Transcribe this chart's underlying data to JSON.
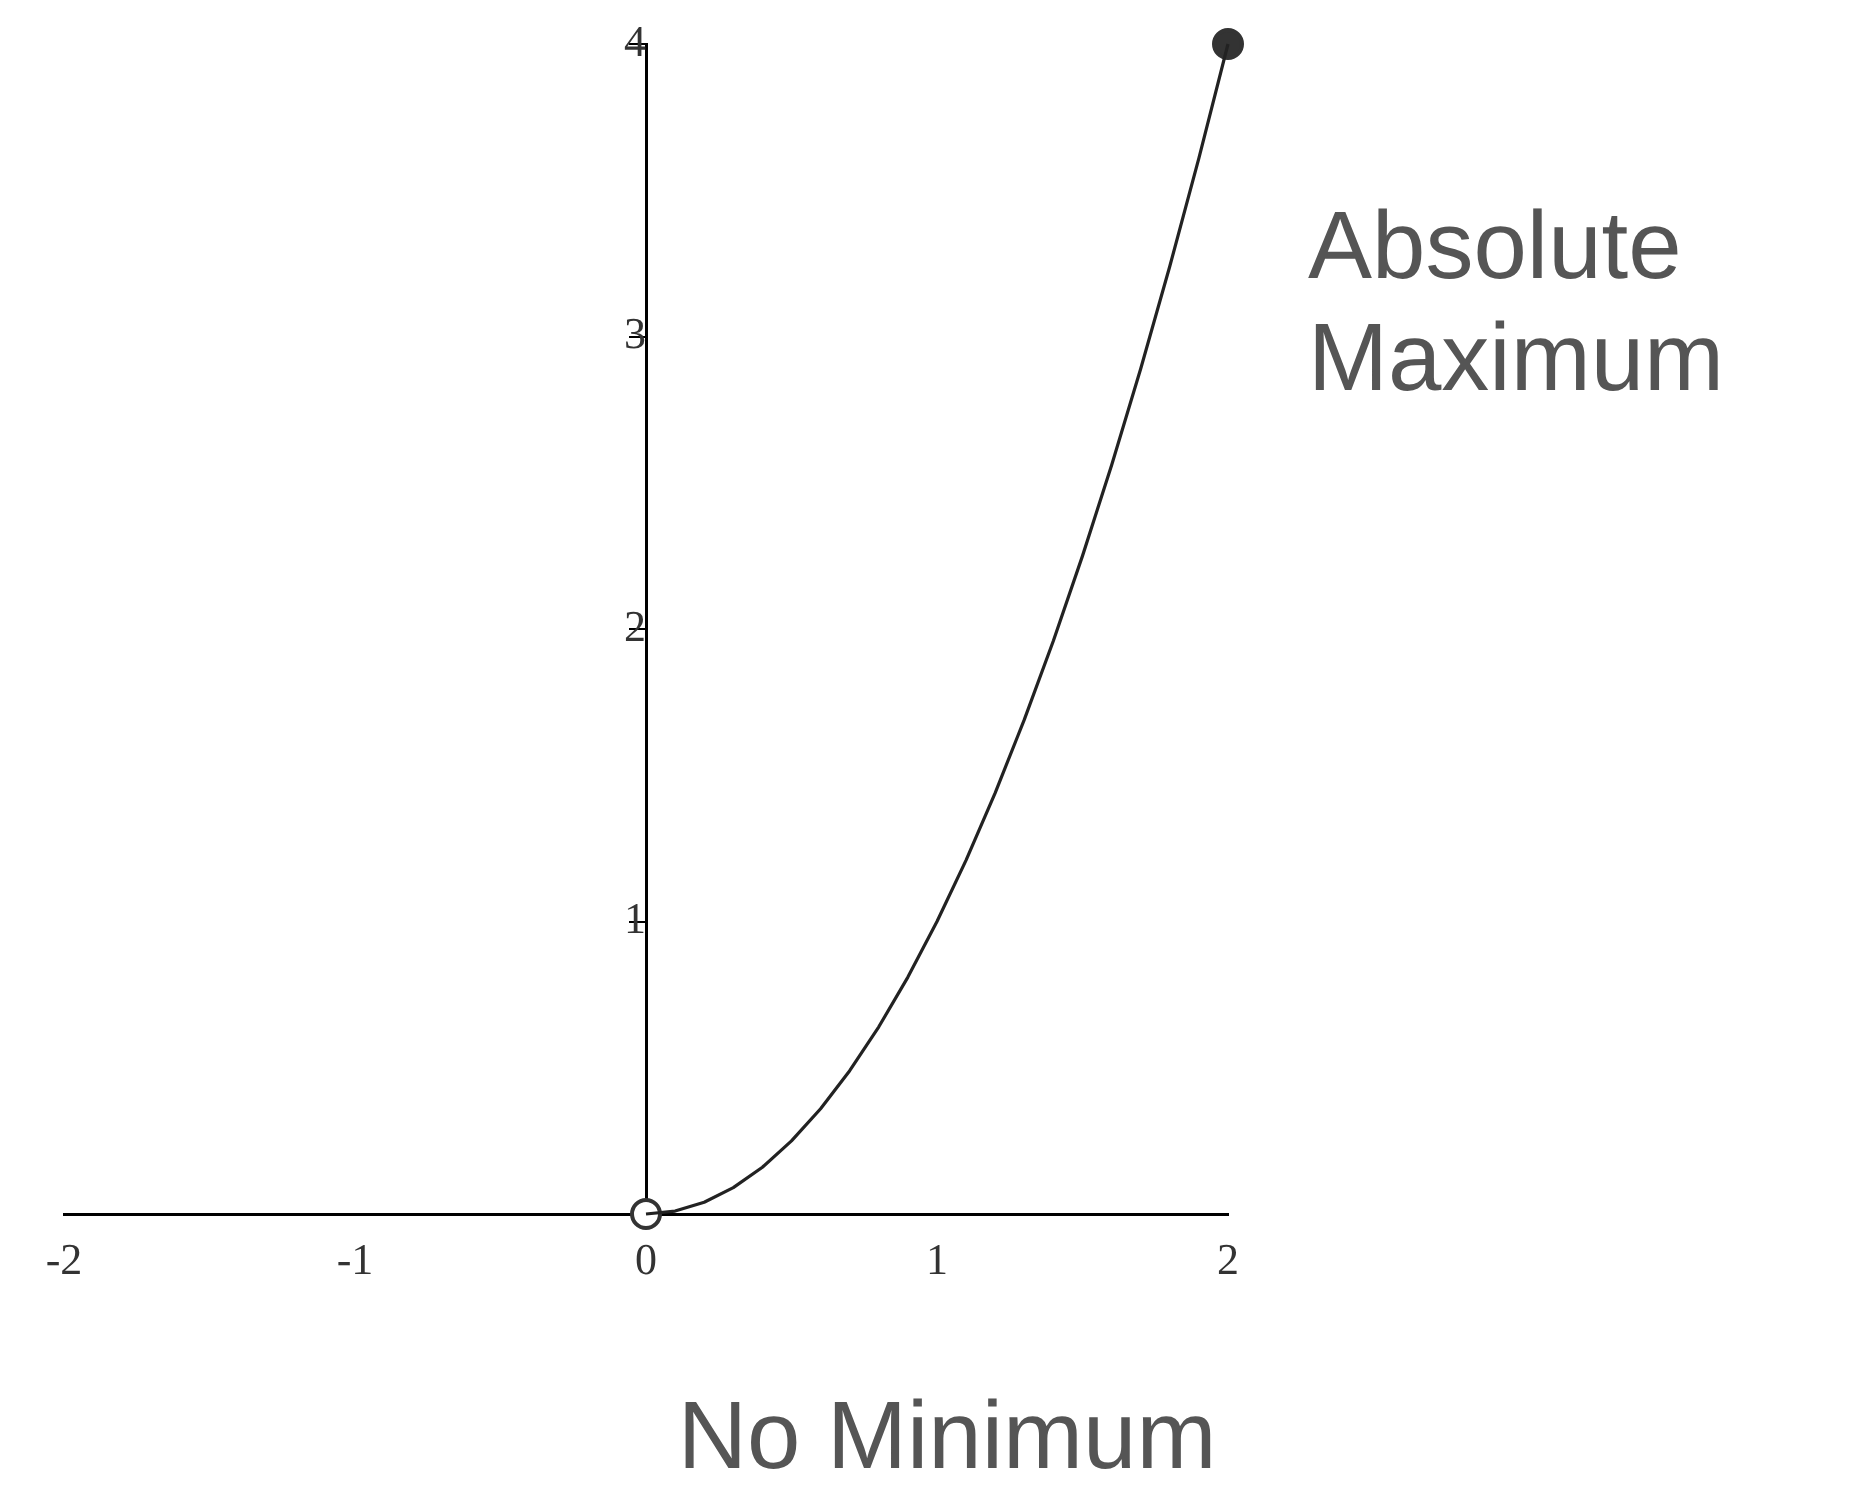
{
  "chart_data": {
    "type": "line",
    "xlim": [
      -2,
      2
    ],
    "ylim": [
      0,
      4
    ],
    "xticks": [
      -2,
      -1,
      0,
      1,
      2
    ],
    "yticks": [
      {
        "value": 0,
        "label": null
      },
      1,
      2,
      3,
      4
    ],
    "grid": false,
    "legend": false,
    "marker": "none",
    "series": [
      {
        "color": "#222222",
        "x": [
          0,
          0.1,
          0.2,
          0.3,
          0.4,
          0.5,
          0.6,
          0.7,
          0.8,
          0.9,
          1,
          1.1,
          1.2,
          1.3,
          1.4,
          1.5,
          1.6,
          1.7,
          1.8,
          1.9,
          2
        ],
        "values": [
          0,
          0.01,
          0.04,
          0.09,
          0.16,
          0.25,
          0.36,
          0.49,
          0.64,
          0.81,
          1,
          1.21,
          1.44,
          1.69,
          1.96,
          2.25,
          2.56,
          2.89,
          3.24,
          3.61,
          4
        ]
      },
      {
        "type": "scatter",
        "marker": "circle",
        "color": "#ffffff",
        "x": [
          0
        ],
        "values": [
          0
        ]
      },
      {
        "type": "scatter",
        "marker": "circle",
        "color": "#333333",
        "x": [
          2
        ],
        "values": [
          4
        ]
      }
    ],
    "annotations": [
      {
        "text": "Absolute Maximum",
        "x": 2,
        "y": 4
      },
      {
        "text": "No Minimum",
        "x": 0,
        "y": 0
      }
    ]
  }
}
